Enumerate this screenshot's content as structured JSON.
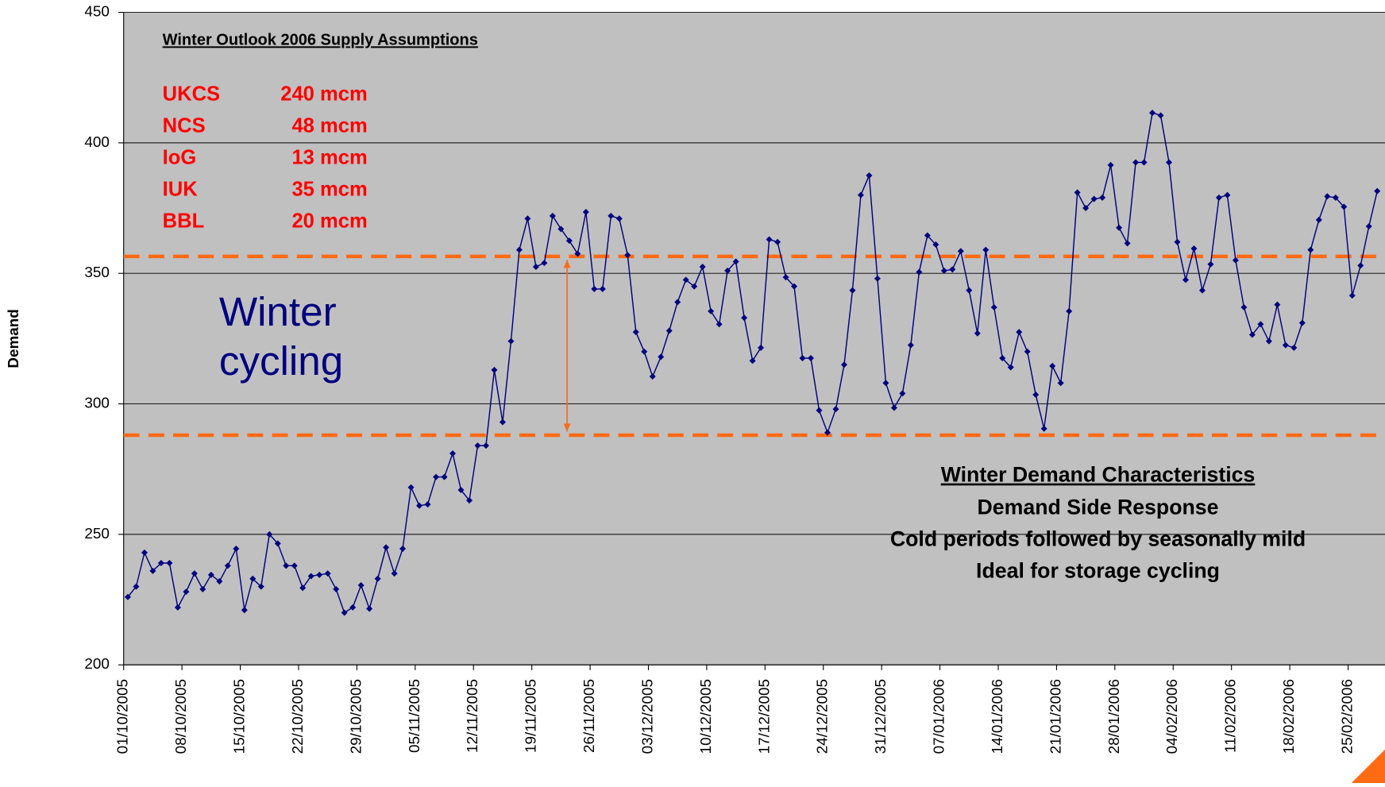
{
  "chart_data": {
    "type": "line",
    "y_label": "Demand",
    "supply_title": "Winter Outlook 2006 Supply Assumptions",
    "supply": [
      [
        "UKCS",
        "240 mcm"
      ],
      [
        "NCS",
        "48 mcm"
      ],
      [
        "IoG",
        "13 mcm"
      ],
      [
        "IUK",
        "35 mcm"
      ],
      [
        "BBL",
        "20 mcm"
      ]
    ],
    "annotation": [
      "Winter",
      "cycling"
    ],
    "characteristics_title": "Winter Demand Characteristics",
    "characteristics": [
      "Demand Side Response",
      "Cold periods followed by seasonally mild",
      "Ideal for storage cycling"
    ],
    "categories": [
      "01/10/2005",
      null,
      null,
      null,
      null,
      null,
      null,
      "08/10/2005",
      null,
      null,
      null,
      null,
      null,
      null,
      "15/10/2005",
      null,
      null,
      null,
      null,
      null,
      null,
      "22/10/2005",
      null,
      null,
      null,
      null,
      null,
      null,
      "29/10/2005",
      null,
      null,
      null,
      null,
      null,
      null,
      "05/11/2005",
      null,
      null,
      null,
      null,
      null,
      null,
      "12/11/2005",
      null,
      null,
      null,
      null,
      null,
      null,
      "19/11/2005",
      null,
      null,
      null,
      null,
      null,
      null,
      "26/11/2005",
      null,
      null,
      null,
      null,
      null,
      null,
      "03/12/2005",
      null,
      null,
      null,
      null,
      null,
      null,
      "10/12/2005",
      null,
      null,
      null,
      null,
      null,
      null,
      "17/12/2005",
      null,
      null,
      null,
      null,
      null,
      null,
      "24/12/2005",
      null,
      null,
      null,
      null,
      null,
      null,
      "31/12/2005",
      null,
      null,
      null,
      null,
      null,
      null,
      "07/01/2006",
      null,
      null,
      null,
      null,
      null,
      null,
      "14/01/2006",
      null,
      null,
      null,
      null,
      null,
      null,
      "21/01/2006",
      null,
      null,
      null,
      null,
      null,
      null,
      "28/01/2006",
      null,
      null,
      null,
      null,
      null,
      null,
      "04/02/2006",
      null,
      null,
      null,
      null,
      null,
      null,
      "11/02/2006",
      null,
      null,
      null,
      null,
      null,
      null,
      "18/02/2006",
      null,
      null,
      null,
      null,
      null,
      null,
      "25/02/2006",
      null,
      null,
      null
    ],
    "values": [
      226,
      230,
      243,
      236,
      239,
      239,
      222,
      228,
      235,
      229,
      234.5,
      232,
      238,
      244.5,
      221,
      233,
      230,
      250,
      246.5,
      238,
      238,
      229.5,
      234,
      234.5,
      235,
      229,
      220,
      222,
      230.5,
      221.5,
      233,
      245,
      235,
      244.5,
      268,
      261,
      261.5,
      272,
      272,
      281,
      267,
      263,
      284,
      284,
      313,
      293,
      324,
      359,
      371,
      352.5,
      354,
      372,
      367,
      362.5,
      357.5,
      373.5,
      344,
      344,
      372,
      371,
      357,
      327.5,
      320,
      310.5,
      318,
      328,
      339,
      347.5,
      345,
      352.5,
      335.5,
      330.5,
      351,
      354.5,
      333,
      316.5,
      321.5,
      363,
      362,
      348.5,
      345,
      317.5,
      317.5,
      297.5,
      289,
      298,
      315,
      343.5,
      380,
      387.5,
      348,
      308,
      298.5,
      304,
      322.5,
      350.5,
      364.5,
      361,
      351,
      351.5,
      358.5,
      343.5,
      327,
      359,
      337,
      317.5,
      314,
      327.5,
      320,
      303.5,
      290.5,
      314.5,
      308,
      335.5,
      381,
      375,
      378.5,
      379,
      391.5,
      367.5,
      361.5,
      392.5,
      392.5,
      411.5,
      410.5,
      392.5,
      362,
      347.5,
      359.5,
      343.5,
      353.5,
      379,
      380,
      355,
      337,
      326.5,
      330.5,
      324,
      338,
      322.5,
      321.5,
      331,
      359,
      370.5,
      379.5,
      379,
      375.5,
      341.5,
      353,
      368,
      381.5
    ],
    "color": "#000080",
    "hlines": [
      356.5,
      288
    ],
    "hline_color": "#ff6a13",
    "ylim": [
      200,
      450
    ],
    "yticks": [
      200,
      250,
      300,
      350,
      400,
      450
    ],
    "grid": true
  }
}
